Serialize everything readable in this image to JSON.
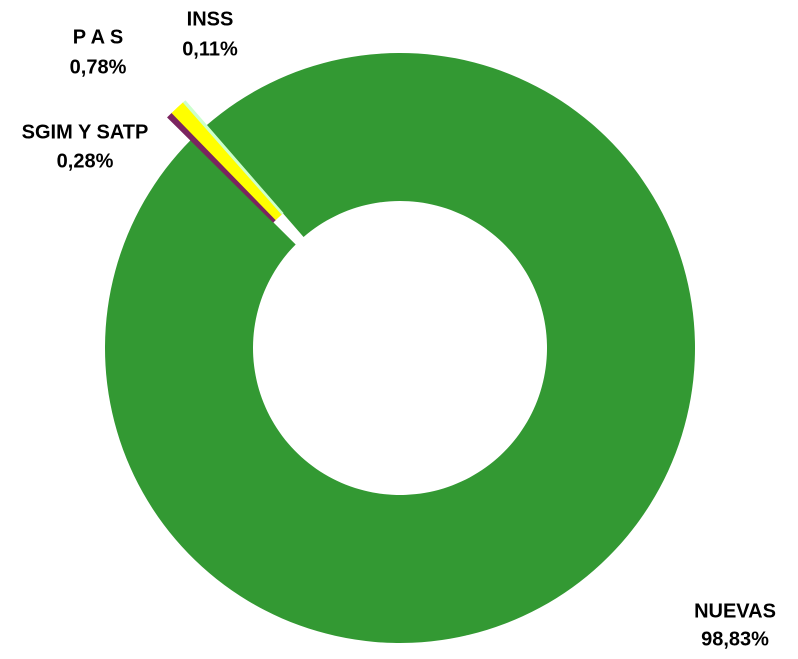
{
  "chart_data": {
    "type": "pie",
    "donut": true,
    "categories": [
      "NUEVAS",
      "SGIM Y SATP",
      "P A S",
      "INSS"
    ],
    "values": [
      98.83,
      0.28,
      0.78,
      0.11
    ],
    "value_labels": [
      "98,83%",
      "0,28%",
      "0,78%",
      "0,11%"
    ],
    "colors": [
      "#339933",
      "#7b2560",
      "#ffff00",
      "#ccffcc"
    ]
  }
}
